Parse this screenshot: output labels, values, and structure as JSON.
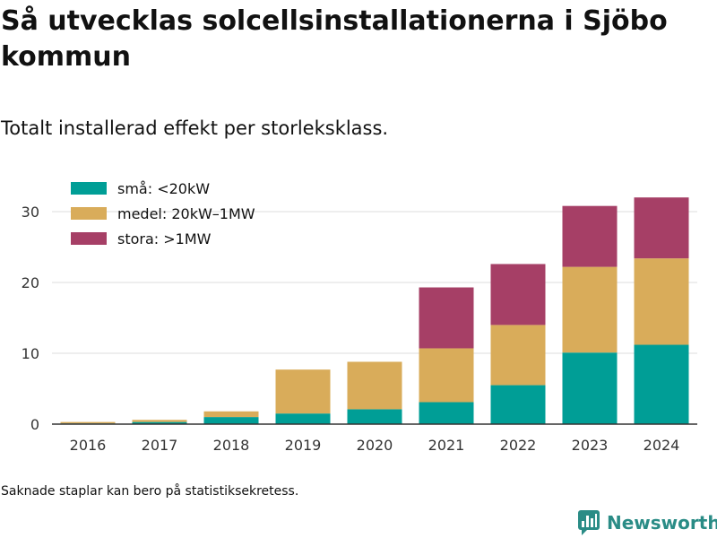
{
  "header": {
    "title": "Så utvecklas solcellsinstallationerna i Sjöbo kommun",
    "subtitle": "Totalt installerad effekt per storleksklass."
  },
  "footnote": "Saknade staplar kan bero på statistiksekretess.",
  "brand": {
    "name": "Newsworthy",
    "color": "#2a8c86"
  },
  "chart_data": {
    "type": "bar",
    "stacked": true,
    "categories": [
      "2016",
      "2017",
      "2018",
      "2019",
      "2020",
      "2021",
      "2022",
      "2023",
      "2024"
    ],
    "series": [
      {
        "name": "små: <20kW",
        "color": "#009e96",
        "values": [
          0.1,
          0.3,
          1.0,
          1.5,
          2.1,
          3.1,
          5.5,
          10.1,
          11.2
        ]
      },
      {
        "name": "medel: 20kW–1MW",
        "color": "#d9ac5a",
        "values": [
          0.2,
          0.3,
          0.8,
          6.2,
          6.7,
          7.6,
          8.5,
          12.1,
          12.2
        ]
      },
      {
        "name": "stora: >1MW",
        "color": "#a63f66",
        "values": [
          0,
          0,
          0,
          0,
          0,
          8.6,
          8.6,
          8.6,
          8.6
        ]
      }
    ],
    "yticks": [
      0,
      10,
      20,
      30
    ],
    "ylim": [
      0,
      32
    ],
    "grid": true,
    "legend": "top-left"
  }
}
